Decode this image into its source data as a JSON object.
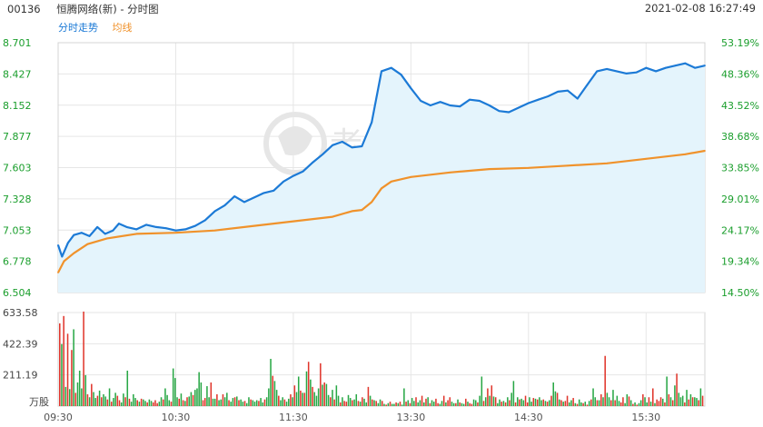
{
  "header": {
    "code": "00136",
    "name": "恒腾网络(新) - 分时图",
    "datetime": "2021-02-08 16:27:49"
  },
  "legend": {
    "price_label": "分时走势",
    "avg_label": "均线"
  },
  "watermark": "老虎社區",
  "colors": {
    "price_line": "#1c7ad6",
    "avg_line": "#f0922b",
    "area_fill": "#e4f4fc",
    "axis_green": "#1a9e2c",
    "vol_green": "#28a745",
    "vol_red": "#e0352b",
    "grid": "#e6e6e6"
  },
  "chart_data": {
    "type": "line",
    "title": "",
    "price_axis": {
      "ylim": [
        6.504,
        8.701
      ],
      "ticks": [
        "8.701",
        "8.427",
        "8.152",
        "7.877",
        "7.603",
        "7.328",
        "7.053",
        "6.778",
        "6.504"
      ]
    },
    "pct_axis": {
      "ticks": [
        "53.19%",
        "48.36%",
        "43.52%",
        "38.68%",
        "33.85%",
        "29.01%",
        "24.17%",
        "19.34%",
        "14.50%"
      ]
    },
    "x_ticks": [
      "09:30",
      "10:30",
      "11:30",
      "13:30",
      "14:30",
      "15:30"
    ],
    "price_series": {
      "name": "分时走势",
      "x": [
        0,
        2,
        5,
        8,
        12,
        16,
        20,
        24,
        28,
        31,
        35,
        40,
        45,
        50,
        55,
        60,
        65,
        70,
        75,
        80,
        85,
        90,
        95,
        100,
        105,
        110,
        115,
        120,
        125,
        130,
        135,
        140,
        145,
        150,
        155,
        160,
        165,
        170,
        175,
        180,
        185,
        190,
        195,
        200,
        205,
        210,
        215,
        220,
        225,
        230,
        235,
        240,
        245,
        250,
        255,
        260,
        265,
        270,
        275,
        280,
        285,
        290,
        295,
        300,
        305,
        310,
        315,
        320,
        325,
        330
      ],
      "values": [
        6.92,
        6.82,
        6.94,
        7.01,
        7.03,
        7.0,
        7.08,
        7.02,
        7.05,
        7.11,
        7.08,
        7.06,
        7.1,
        7.08,
        7.07,
        7.05,
        7.06,
        7.09,
        7.14,
        7.22,
        7.27,
        7.35,
        7.3,
        7.34,
        7.38,
        7.4,
        7.48,
        7.53,
        7.57,
        7.65,
        7.72,
        7.8,
        7.83,
        7.78,
        7.79,
        8.0,
        8.45,
        8.48,
        8.42,
        8.3,
        8.19,
        8.15,
        8.18,
        8.15,
        8.14,
        8.2,
        8.19,
        8.15,
        8.1,
        8.09,
        8.13,
        8.17,
        8.2,
        8.23,
        8.27,
        8.28,
        8.21,
        8.33,
        8.45,
        8.47,
        8.45,
        8.43,
        8.44,
        8.48,
        8.45,
        8.48,
        8.5,
        8.52,
        8.48,
        8.5
      ]
    },
    "avg_series": {
      "name": "均线",
      "x": [
        0,
        3,
        8,
        15,
        25,
        40,
        60,
        80,
        100,
        120,
        140,
        150,
        155,
        160,
        165,
        170,
        180,
        200,
        220,
        240,
        260,
        280,
        300,
        320,
        330
      ],
      "values": [
        6.68,
        6.78,
        6.85,
        6.93,
        6.98,
        7.02,
        7.03,
        7.05,
        7.09,
        7.13,
        7.17,
        7.22,
        7.23,
        7.3,
        7.42,
        7.48,
        7.52,
        7.56,
        7.59,
        7.6,
        7.62,
        7.64,
        7.68,
        7.72,
        7.75
      ]
    },
    "volume": {
      "ylabel": "万股",
      "ylim": [
        0,
        633.58
      ],
      "ticks": [
        "633.58",
        "422.39",
        "211.19"
      ],
      "values": [
        560,
        420,
        610,
        130,
        490,
        115,
        380,
        520,
        90,
        160,
        240,
        120,
        640,
        210,
        80,
        60,
        150,
        95,
        55,
        70,
        105,
        60,
        80,
        65,
        45,
        120,
        30,
        55,
        90,
        70,
        40,
        25,
        85,
        60,
        240,
        50,
        30,
        80,
        55,
        40,
        30,
        50,
        45,
        35,
        25,
        45,
        35,
        25,
        40,
        20,
        30,
        60,
        45,
        120,
        75,
        40,
        30,
        255,
        190,
        60,
        50,
        85,
        40,
        35,
        60,
        65,
        95,
        75,
        110,
        120,
        230,
        160,
        40,
        55,
        135,
        60,
        160,
        50,
        50,
        80,
        40,
        45,
        80,
        60,
        90,
        40,
        30,
        55,
        60,
        65,
        40,
        45,
        30,
        35,
        20,
        60,
        45,
        40,
        30,
        40,
        35,
        55,
        25,
        45,
        60,
        120,
        320,
        205,
        170,
        110,
        70,
        40,
        60,
        45,
        30,
        50,
        80,
        60,
        140,
        95,
        200,
        105,
        90,
        90,
        235,
        300,
        180,
        130,
        95,
        70,
        120,
        290,
        145,
        160,
        150,
        75,
        60,
        110,
        45,
        140,
        70,
        25,
        60,
        35,
        30,
        75,
        55,
        40,
        45,
        80,
        35,
        30,
        60,
        50,
        25,
        130,
        70,
        45,
        40,
        35,
        20,
        45,
        35,
        15,
        10,
        20,
        30,
        15,
        15,
        25,
        20,
        30,
        10,
        120,
        30,
        40,
        20,
        55,
        35,
        60,
        25,
        40,
        70,
        25,
        50,
        60,
        20,
        40,
        30,
        50,
        20,
        15,
        35,
        70,
        25,
        40,
        60,
        30,
        20,
        20,
        45,
        25,
        20,
        15,
        50,
        30,
        20,
        15,
        45,
        40,
        25,
        70,
        200,
        35,
        60,
        120,
        70,
        140,
        65,
        60,
        20,
        45,
        30,
        35,
        25,
        60,
        40,
        90,
        170,
        25,
        60,
        45,
        50,
        40,
        70,
        25,
        60,
        30,
        55,
        50,
        45,
        60,
        40,
        45,
        35,
        30,
        40,
        70,
        160,
        100,
        90,
        45,
        40,
        30,
        35,
        70,
        25,
        40,
        55,
        20,
        15,
        45,
        25,
        20,
        30,
        10,
        35,
        45,
        120,
        60,
        40,
        40,
        80,
        60,
        340,
        90,
        60,
        40,
        110,
        40,
        70,
        35,
        25,
        60,
        20,
        80,
        65,
        40,
        15,
        25,
        10,
        20,
        40,
        80,
        60,
        25,
        60,
        30,
        120,
        20,
        45,
        35,
        60,
        50,
        25,
        200,
        80,
        60,
        40,
        140,
        220,
        90,
        60,
        70,
        25,
        110,
        45,
        80,
        60,
        60,
        55,
        40,
        120,
        70
      ],
      "up": [
        0,
        1,
        0,
        1,
        0,
        1,
        0,
        1,
        0,
        1,
        1,
        1,
        0,
        1,
        0,
        1,
        0,
        1,
        1,
        0,
        1,
        0,
        1,
        1,
        0,
        1,
        0,
        1,
        1,
        0,
        0,
        1,
        1,
        0,
        1,
        0,
        1,
        1,
        1,
        0,
        1,
        0,
        1,
        1,
        0,
        1,
        1,
        0,
        0,
        0,
        1,
        1,
        0,
        1,
        1,
        1,
        0,
        1,
        1,
        1,
        0,
        1,
        0,
        1,
        0,
        1,
        1,
        0,
        1,
        1,
        1,
        1,
        0,
        0,
        1,
        1,
        0,
        1,
        1,
        0,
        1,
        1,
        0,
        1,
        1,
        0,
        1,
        1,
        0,
        1,
        0,
        1,
        1,
        0,
        1,
        1,
        0,
        1,
        1,
        1,
        0,
        1,
        1,
        0,
        1,
        1,
        1,
        0,
        1,
        1,
        0,
        1,
        1,
        0,
        1,
        1,
        0,
        1,
        0,
        1,
        1,
        0,
        1,
        0,
        1,
        0,
        1,
        0,
        1,
        1,
        1,
        0,
        1,
        0,
        1,
        1,
        0,
        1,
        0,
        1,
        1,
        0,
        1,
        0,
        0,
        1,
        1,
        0,
        1,
        1,
        0,
        1,
        0,
        1,
        1,
        0,
        1,
        0,
        1,
        0,
        1,
        1,
        0,
        1,
        0,
        1,
        0,
        1,
        1,
        0,
        1,
        0,
        1,
        1,
        0,
        1,
        0,
        1,
        1,
        0,
        1,
        1,
        0,
        1,
        0,
        1,
        0,
        1,
        1,
        0,
        0,
        1,
        1,
        0,
        1,
        0,
        0,
        1,
        1,
        0,
        1,
        0,
        1,
        1,
        0,
        1,
        0,
        0,
        1,
        1,
        0,
        1,
        1,
        0,
        1,
        0,
        1,
        0,
        1,
        0,
        1,
        1,
        0,
        1,
        0,
        1,
        0,
        1,
        1,
        0,
        1,
        0,
        1,
        1,
        0,
        0,
        1,
        1,
        0,
        1,
        0,
        1,
        1,
        0,
        1,
        0,
        1,
        0,
        1,
        1,
        0,
        1,
        0,
        1,
        0,
        0,
        1,
        1,
        0,
        1,
        0,
        1,
        1,
        0,
        1,
        0,
        1,
        0,
        1,
        1,
        0,
        1,
        0,
        1,
        0,
        1,
        1,
        0,
        1,
        0,
        1,
        1,
        0,
        0,
        1,
        1,
        0,
        1,
        0,
        1,
        0,
        1,
        1,
        0,
        1,
        1,
        0,
        1,
        0,
        1,
        0,
        0
      ]
    }
  }
}
